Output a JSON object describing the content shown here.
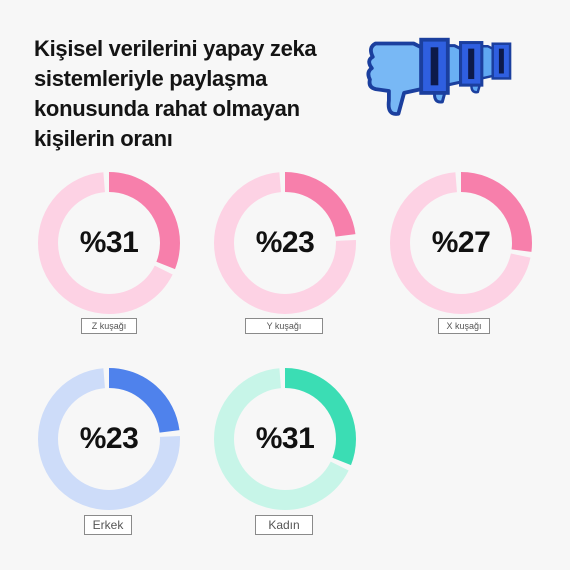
{
  "title": "Kişisel verilerini yapay zeka sistemleriyle paylaşma konusunda rahat olmayan kişilerin oranı",
  "icon": "thumbs-down-icon",
  "chart_data": {
    "type": "donut",
    "title": "Kişisel verilerini yapay zeka sistemleriyle paylaşma konusunda rahat olmayan kişilerin oranı",
    "items": [
      {
        "label": "Z kuşağı",
        "value": 31,
        "display": "%31",
        "color": "#f77fab",
        "track": "#fdd2e4"
      },
      {
        "label": "Y kuşağı",
        "value": 23,
        "display": "%23",
        "color": "#f77fab",
        "track": "#fdd2e4"
      },
      {
        "label": "X kuşağı",
        "value": 27,
        "display": "%27",
        "color": "#f77fab",
        "track": "#fdd2e4"
      },
      {
        "label": "Erkek",
        "value": 23,
        "display": "%23",
        "color": "#4f82ec",
        "track": "#cddcf9"
      },
      {
        "label": "Kadın",
        "value": 31,
        "display": "%31",
        "color": "#3bddb4",
        "track": "#c7f5e8"
      }
    ]
  }
}
